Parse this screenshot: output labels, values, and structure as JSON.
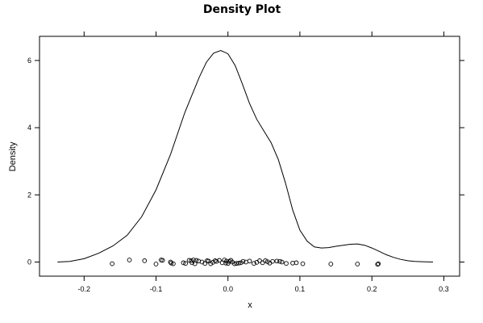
{
  "chart_data": {
    "type": "line",
    "title": "Density Plot",
    "xlabel": "x",
    "ylabel": "Density",
    "xlim": [
      -0.262,
      0.322
    ],
    "ylim": [
      -0.42,
      6.72
    ],
    "xticks": [
      -0.2,
      -0.1,
      0.0,
      0.1,
      0.2,
      0.3
    ],
    "xtick_labels": [
      "-0.2",
      "-0.1",
      "0.0",
      "0.1",
      "0.2",
      "0.3"
    ],
    "yticks": [
      0,
      2,
      4,
      6
    ],
    "ytick_labels": [
      "0",
      "2",
      "4",
      "6"
    ],
    "grid": false,
    "legend": "none",
    "series": [
      {
        "type": "line",
        "x": [
          -0.237,
          -0.22,
          -0.2,
          -0.18,
          -0.16,
          -0.14,
          -0.12,
          -0.1,
          -0.08,
          -0.06,
          -0.04,
          -0.03,
          -0.02,
          -0.01,
          0.0,
          0.01,
          0.02,
          0.03,
          0.04,
          0.05,
          0.06,
          0.07,
          0.08,
          0.09,
          0.1,
          0.11,
          0.12,
          0.13,
          0.14,
          0.15,
          0.16,
          0.17,
          0.18,
          0.19,
          0.2,
          0.21,
          0.22,
          0.23,
          0.24,
          0.25,
          0.26,
          0.27,
          0.285
        ],
        "y": [
          0.0,
          0.02,
          0.1,
          0.26,
          0.48,
          0.8,
          1.35,
          2.15,
          3.2,
          4.45,
          5.5,
          5.95,
          6.22,
          6.3,
          6.2,
          5.85,
          5.3,
          4.72,
          4.25,
          3.9,
          3.55,
          3.05,
          2.35,
          1.55,
          0.95,
          0.62,
          0.45,
          0.42,
          0.43,
          0.47,
          0.5,
          0.53,
          0.54,
          0.5,
          0.42,
          0.32,
          0.22,
          0.14,
          0.08,
          0.04,
          0.02,
          0.01,
          0.0
        ]
      },
      {
        "type": "scatter",
        "marker": "open-circle",
        "x": [
          -0.161,
          -0.137,
          -0.116,
          -0.1,
          -0.093,
          -0.091,
          -0.08,
          -0.079,
          -0.076,
          -0.062,
          -0.059,
          -0.054,
          -0.051,
          -0.05,
          -0.048,
          -0.046,
          -0.044,
          -0.041,
          -0.036,
          -0.032,
          -0.029,
          -0.027,
          -0.024,
          -0.021,
          -0.018,
          -0.016,
          -0.012,
          -0.008,
          -0.005,
          -0.003,
          -0.002,
          0.0,
          0.002,
          0.004,
          0.006,
          0.009,
          0.012,
          0.015,
          0.018,
          0.021,
          0.025,
          0.03,
          0.036,
          0.04,
          0.044,
          0.048,
          0.052,
          0.055,
          0.058,
          0.062,
          0.068,
          0.072,
          0.075,
          0.081,
          0.09,
          0.095,
          0.104,
          0.143,
          0.18,
          0.208,
          0.209
        ],
        "y": [
          -0.05,
          0.06,
          0.04,
          -0.06,
          0.06,
          0.05,
          0.0,
          -0.03,
          -0.05,
          -0.02,
          -0.04,
          0.05,
          0.04,
          -0.02,
          0.06,
          -0.05,
          0.05,
          0.03,
          0.0,
          -0.04,
          0.04,
          0.03,
          -0.05,
          -0.01,
          0.04,
          0.02,
          0.05,
          -0.02,
          0.06,
          -0.03,
          0.03,
          -0.04,
          0.02,
          0.05,
          0.0,
          -0.05,
          -0.04,
          -0.03,
          -0.02,
          0.02,
          0.0,
          0.03,
          -0.04,
          -0.01,
          0.04,
          -0.02,
          0.04,
          0.01,
          -0.03,
          0.02,
          0.03,
          0.02,
          0.0,
          -0.04,
          -0.03,
          -0.02,
          -0.05,
          -0.06,
          -0.06,
          -0.07,
          -0.05
        ]
      }
    ]
  }
}
